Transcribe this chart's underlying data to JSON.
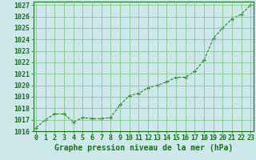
{
  "x": [
    0,
    1,
    2,
    3,
    4,
    5,
    6,
    7,
    8,
    9,
    10,
    11,
    12,
    13,
    14,
    15,
    16,
    17,
    18,
    19,
    20,
    21,
    22,
    23
  ],
  "y": [
    1016.3,
    1017.0,
    1017.5,
    1017.5,
    1016.8,
    1017.2,
    1017.1,
    1017.1,
    1017.2,
    1018.3,
    1019.1,
    1019.3,
    1019.8,
    1020.0,
    1020.3,
    1020.7,
    1020.7,
    1021.2,
    1022.2,
    1024.1,
    1025.0,
    1025.8,
    1026.2,
    1027.0
  ],
  "line_color": "#1a6e1a",
  "marker": "+",
  "bg_color": "#cce8e8",
  "grid_color": "#7bbf7b",
  "xlabel": "Graphe pression niveau de la mer (hPa)",
  "ylim_min": 1016,
  "ylim_max": 1027,
  "xlim_min": 0,
  "xlim_max": 23,
  "ytick_step": 1,
  "axis_color": "#1a6e1a",
  "tick_color": "#1a6e1a",
  "xlabel_fontsize": 7,
  "tick_fontsize": 6
}
